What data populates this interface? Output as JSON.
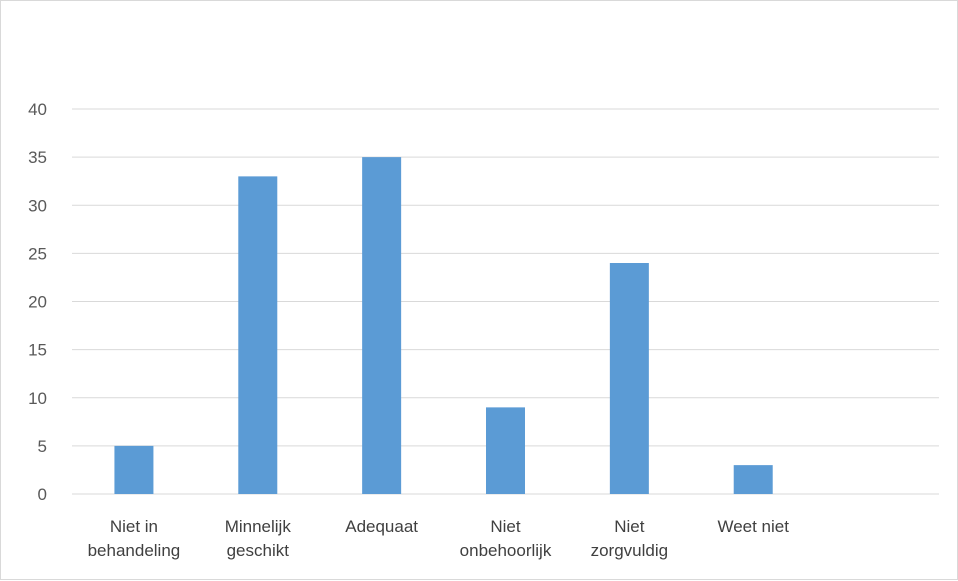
{
  "chart_data": {
    "type": "bar",
    "categories": [
      [
        "Niet in",
        "behandeling"
      ],
      [
        "Minnelijk",
        "geschikt"
      ],
      [
        "Adequaat"
      ],
      [
        "Niet",
        "onbehoorlijk"
      ],
      [
        "Niet",
        "zorgvuldig"
      ],
      [
        "Weet niet"
      ],
      []
    ],
    "values": [
      5,
      33,
      35,
      9,
      24,
      3,
      null
    ],
    "yticks": [
      0,
      5,
      10,
      15,
      20,
      25,
      30,
      35,
      40
    ],
    "ylim": [
      0,
      40
    ],
    "grid": true,
    "colors": {
      "bar": "#5b9bd5",
      "grid": "#d9d9d9",
      "axis": "#d9d9d9"
    }
  }
}
